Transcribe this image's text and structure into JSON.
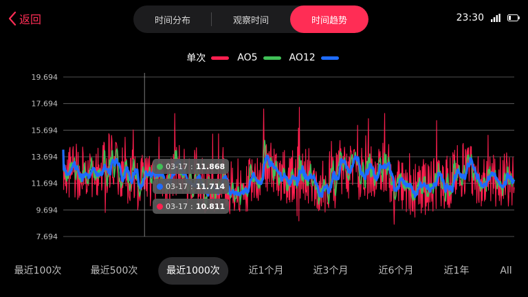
{
  "nav": {
    "back_label": "返回"
  },
  "tabs": [
    {
      "label": "时间分布",
      "active": false
    },
    {
      "label": "观察时间",
      "active": false
    },
    {
      "label": "时间趋势",
      "active": true
    }
  ],
  "status": {
    "time": "23:30"
  },
  "legend": {
    "label": "单次",
    "entries": [
      {
        "name": "",
        "color": "#ff1f4f"
      },
      {
        "name": "AO5",
        "color": "#40c057"
      },
      {
        "name": "AO12",
        "color": "#1e6bff"
      }
    ]
  },
  "chart_data": {
    "type": "line",
    "y_ticks": [
      "19.694",
      "17.694",
      "15.694",
      "13.694",
      "11.694",
      "9.694",
      "7.694"
    ],
    "ylim": [
      7.694,
      19.694
    ],
    "grid": true,
    "n_points": 1000,
    "series": [
      {
        "name": "单次",
        "color": "#ff1f4f",
        "mean": 11.9,
        "spread": 1.6,
        "min": 7.9,
        "max": 17.7
      },
      {
        "name": "AO5",
        "color": "#40c057",
        "mean": 12.0,
        "spread": 0.7
      },
      {
        "name": "AO12",
        "color": "#1e6bff",
        "mean": 12.1,
        "spread": 0.45
      }
    ],
    "cursor_index": 180,
    "tooltips": [
      {
        "date": "03-17",
        "value": "11.868",
        "color": "#40c057"
      },
      {
        "date": "03-17",
        "value": "11.714",
        "color": "#1e6bff"
      },
      {
        "date": "03-17",
        "value": "10.811",
        "color": "#ff1f4f"
      }
    ]
  },
  "periods": [
    {
      "label": "最近100次",
      "active": false
    },
    {
      "label": "最近500次",
      "active": false
    },
    {
      "label": "最近1000次",
      "active": true
    },
    {
      "label": "近1个月",
      "active": false
    },
    {
      "label": "近3个月",
      "active": false
    },
    {
      "label": "近6个月",
      "active": false
    },
    {
      "label": "近1年",
      "active": false
    },
    {
      "label": "All",
      "active": false
    }
  ]
}
